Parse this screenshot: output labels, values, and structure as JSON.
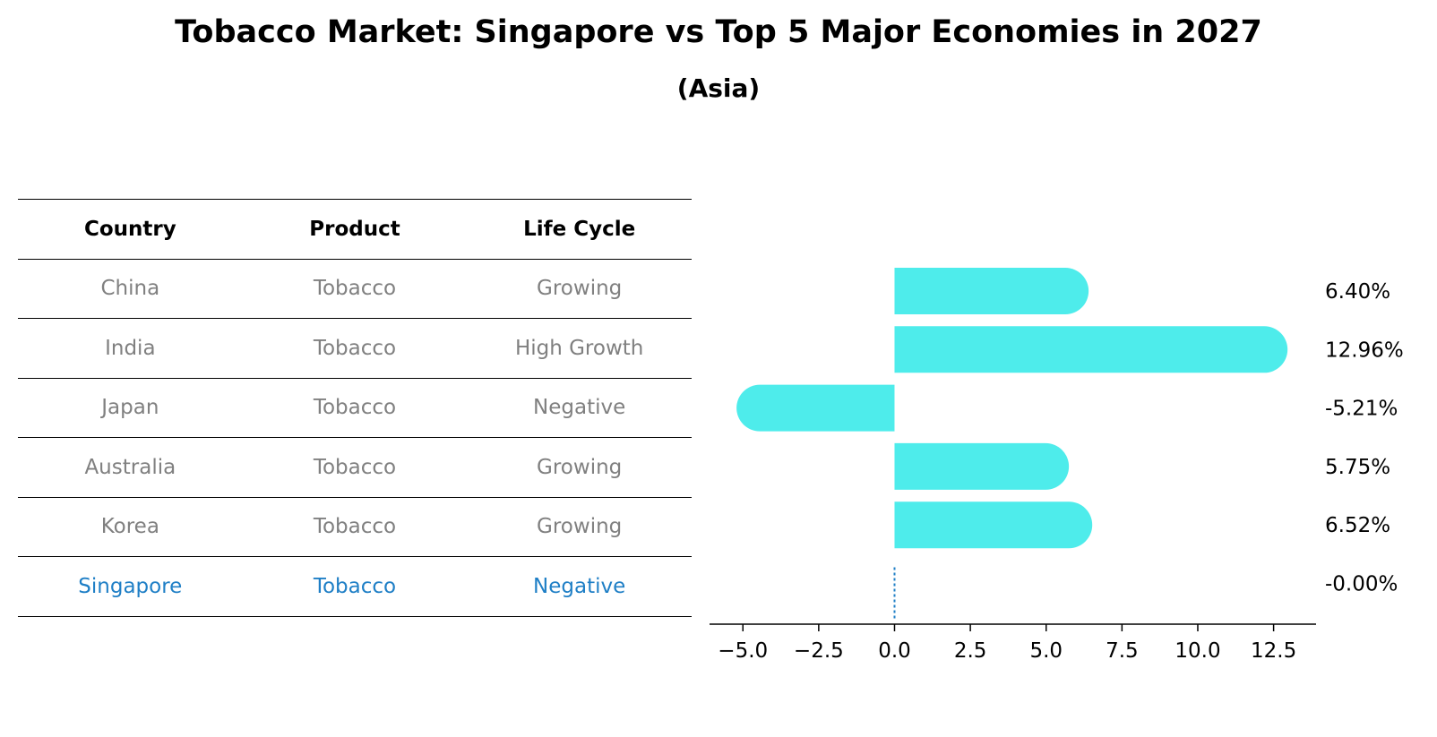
{
  "title": "Tobacco Market: Singapore vs Top 5 Major Economies in 2027",
  "subtitle": "(Asia)",
  "table": {
    "headers": [
      "Country",
      "Product",
      "Life Cycle"
    ],
    "rows": [
      {
        "country": "China",
        "product": "Tobacco",
        "life_cycle": "Growing"
      },
      {
        "country": "India",
        "product": "Tobacco",
        "life_cycle": "High Growth"
      },
      {
        "country": "Japan",
        "product": "Tobacco",
        "life_cycle": "Negative"
      },
      {
        "country": "Australia",
        "product": "Tobacco",
        "life_cycle": "Growing"
      },
      {
        "country": "Korea",
        "product": "Tobacco",
        "life_cycle": "Growing"
      },
      {
        "country": "Singapore",
        "product": "Tobacco",
        "life_cycle": "Negative"
      }
    ],
    "highlight_color": "#1f7fc6",
    "text_color": "#808080"
  },
  "chart_data": {
    "type": "bar",
    "orientation": "horizontal",
    "categories": [
      "China",
      "India",
      "Japan",
      "Australia",
      "Korea",
      "Singapore"
    ],
    "values": [
      6.4,
      12.96,
      -5.21,
      5.75,
      6.52,
      -0.0
    ],
    "value_labels": [
      "6.40%",
      "12.96%",
      "-5.21%",
      "5.75%",
      "6.52%",
      "-0.00%"
    ],
    "xlim": [
      -6.1,
      13.9
    ],
    "xticks": [
      -5.0,
      -2.5,
      0.0,
      2.5,
      5.0,
      7.5,
      10.0,
      12.5
    ],
    "xtick_labels": [
      "−5.0",
      "−2.5",
      "0.0",
      "2.5",
      "5.0",
      "7.5",
      "10.0",
      "12.5"
    ],
    "bar_color": "#4eeceb",
    "zero_line_color": "#1f7fc6",
    "grid": false
  }
}
